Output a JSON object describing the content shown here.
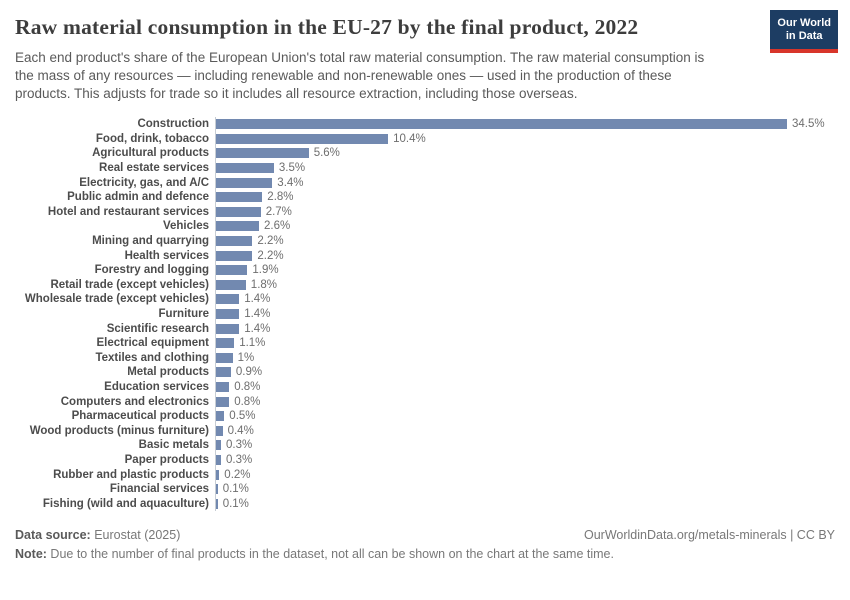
{
  "header": {
    "title": "Raw material consumption in the EU-27 by the final product, 2022",
    "subtitle": "Each end product's share of the European Union's total raw material consumption. The raw material consumption is the mass of any resources — including renewable and non-renewable ones — used in the production of these products. This adjusts for trade so it includes all resource extraction, including those overseas.",
    "logo_line1": "Our World",
    "logo_line2": "in Data"
  },
  "chart_data": {
    "type": "bar",
    "orientation": "horizontal",
    "title": "Raw material consumption in the EU-27 by the final product, 2022",
    "unit": "%",
    "grid": false,
    "xlim": [
      0,
      34.5
    ],
    "bar_color": "#7289b0",
    "categories": [
      "Construction",
      "Food, drink, tobacco",
      "Agricultural products",
      "Real estate services",
      "Electricity, gas, and A/C",
      "Public admin and defence",
      "Hotel and restaurant services",
      "Vehicles",
      "Mining and quarrying",
      "Health services",
      "Forestry and logging",
      "Retail trade (except vehicles)",
      "Wholesale trade (except vehicles)",
      "Furniture",
      "Scientific research",
      "Electrical equipment",
      "Textiles and clothing",
      "Metal products",
      "Education services",
      "Computers and electronics",
      "Pharmaceutical products",
      "Wood products (minus furniture)",
      "Basic metals",
      "Paper products",
      "Rubber and plastic products",
      "Financial services",
      "Fishing (wild and aquaculture)"
    ],
    "values": [
      34.5,
      10.4,
      5.6,
      3.5,
      3.4,
      2.8,
      2.7,
      2.6,
      2.2,
      2.2,
      1.9,
      1.8,
      1.4,
      1.4,
      1.4,
      1.1,
      1.0,
      0.9,
      0.8,
      0.8,
      0.5,
      0.4,
      0.3,
      0.3,
      0.2,
      0.1,
      0.1
    ],
    "value_labels": [
      "34.5%",
      "10.4%",
      "5.6%",
      "3.5%",
      "3.4%",
      "2.8%",
      "2.7%",
      "2.6%",
      "2.2%",
      "2.2%",
      "1.9%",
      "1.8%",
      "1.4%",
      "1.4%",
      "1.4%",
      "1.1%",
      "1%",
      "0.9%",
      "0.8%",
      "0.8%",
      "0.5%",
      "0.4%",
      "0.3%",
      "0.3%",
      "0.2%",
      "0.1%",
      "0.1%"
    ]
  },
  "footer": {
    "data_source_label": "Data source:",
    "data_source_value": " Eurostat (2025)",
    "attribution": "OurWorldinData.org/metals-minerals | CC BY",
    "note_label": "Note:",
    "note_value": " Due to the number of final products in the dataset, not all can be shown on the chart at the same time."
  }
}
